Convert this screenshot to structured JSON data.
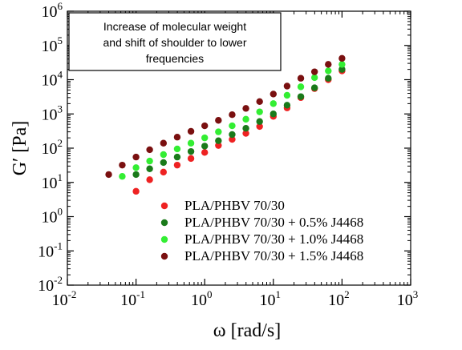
{
  "chart_data": {
    "type": "scatter",
    "xscale": "log",
    "yscale": "log",
    "xlim": [
      0.01,
      1000
    ],
    "ylim": [
      0.01,
      1000000
    ],
    "grid": false,
    "legend_position": "lower-right",
    "xlabel": "ω [rad/s]",
    "ylabel": "G′ [Pa]",
    "x_ticks": [
      {
        "base": "10",
        "exp": "-2",
        "value": 0.01
      },
      {
        "base": "10",
        "exp": "-1",
        "value": 0.1
      },
      {
        "base": "10",
        "exp": "0",
        "value": 1
      },
      {
        "base": "10",
        "exp": "1",
        "value": 10
      },
      {
        "base": "10",
        "exp": "2",
        "value": 100
      },
      {
        "base": "10",
        "exp": "3",
        "value": 1000
      }
    ],
    "y_ticks": [
      {
        "base": "10",
        "exp": "-2",
        "value": 0.01
      },
      {
        "base": "10",
        "exp": "-1",
        "value": 0.1
      },
      {
        "base": "10",
        "exp": "0",
        "value": 1
      },
      {
        "base": "10",
        "exp": "1",
        "value": 10
      },
      {
        "base": "10",
        "exp": "2",
        "value": 100
      },
      {
        "base": "10",
        "exp": "3",
        "value": 1000
      },
      {
        "base": "10",
        "exp": "4",
        "value": 10000
      },
      {
        "base": "10",
        "exp": "5",
        "value": 100000
      },
      {
        "base": "10",
        "exp": "6",
        "value": 1000000
      }
    ],
    "annotation": [
      "Increase of molecular weight",
      "and shift of shoulder to lower",
      "frequencies"
    ],
    "series": [
      {
        "name": "PLA/PHBV 70/30",
        "color": "#ee2222",
        "x": [
          0.1,
          0.158,
          0.251,
          0.398,
          0.631,
          1,
          1.585,
          2.512,
          3.981,
          6.31,
          10,
          15.85,
          25.12,
          39.81,
          63.1,
          100
        ],
        "y": [
          5.5,
          12,
          20,
          32,
          50,
          75,
          120,
          180,
          270,
          430,
          850,
          1500,
          3000,
          5500,
          10000,
          18000
        ]
      },
      {
        "name": "PLA/PHBV 70/30 + 0.5% J4468",
        "color": "#1a7a1a",
        "x": [
          0.1,
          0.158,
          0.251,
          0.398,
          0.631,
          1,
          1.585,
          2.512,
          3.981,
          6.31,
          10,
          15.85,
          25.12,
          39.81,
          63.1,
          100
        ],
        "y": [
          17,
          25,
          38,
          55,
          80,
          115,
          165,
          250,
          380,
          600,
          1000,
          1800,
          3200,
          5800,
          11000,
          20000
        ]
      },
      {
        "name": "PLA/PHBV 70/30 + 1.0% J4468",
        "color": "#33ee33",
        "x": [
          0.063,
          0.1,
          0.158,
          0.251,
          0.398,
          0.631,
          1,
          1.585,
          2.512,
          3.981,
          6.31,
          10,
          15.85,
          25.12,
          39.81,
          63.1,
          100
        ],
        "y": [
          15,
          27,
          42,
          65,
          95,
          140,
          200,
          300,
          450,
          700,
          1150,
          2000,
          3500,
          6200,
          11500,
          18000,
          28000
        ]
      },
      {
        "name": "PLA/PHBV 70/30 + 1.5% J4468",
        "color": "#7a1010",
        "x": [
          0.04,
          0.063,
          0.1,
          0.158,
          0.251,
          0.398,
          0.631,
          1,
          1.585,
          2.512,
          3.981,
          6.31,
          10,
          15.85,
          25.12,
          39.81,
          63.1,
          100
        ],
        "y": [
          17,
          32,
          55,
          90,
          140,
          210,
          310,
          450,
          650,
          950,
          1450,
          2300,
          3800,
          6500,
          11000,
          17000,
          28000,
          42000
        ]
      }
    ]
  }
}
